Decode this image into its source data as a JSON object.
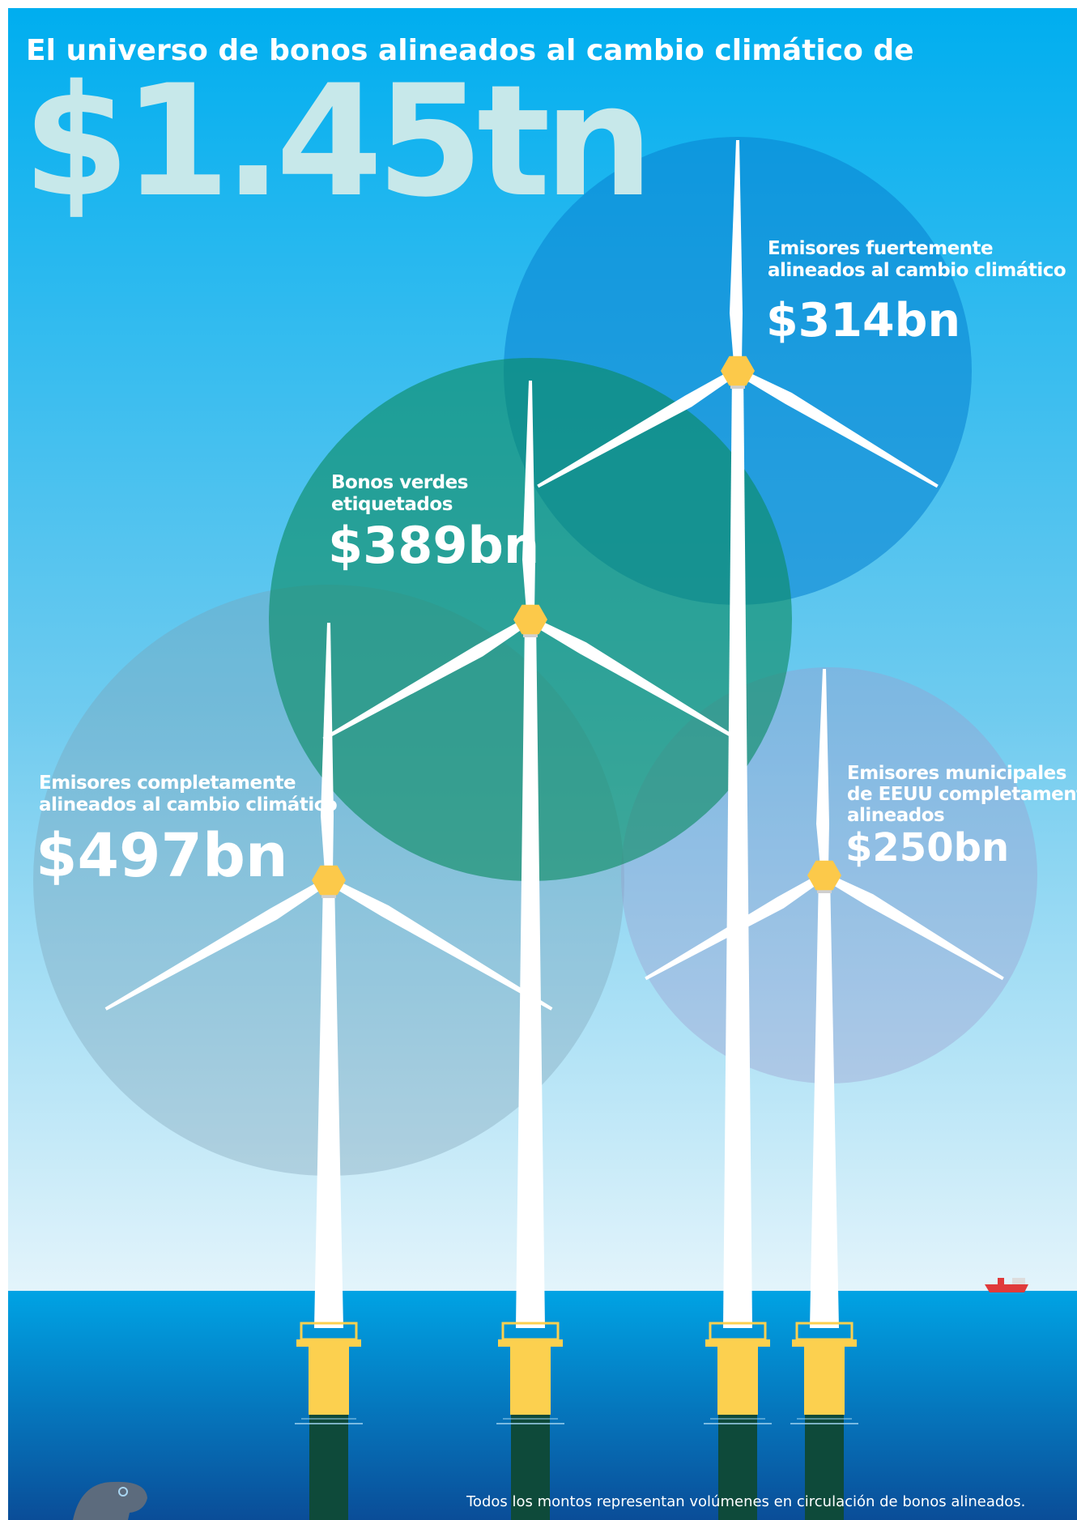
{
  "header": {
    "title": "El universo de bonos alineados al cambio climático de",
    "total": "$1.45tn"
  },
  "segments": [
    {
      "label_lines": [
        "Emisores fuertemente",
        "alineados al cambio climático"
      ],
      "amount": "$314bn"
    },
    {
      "label_lines": [
        "Bonos verdes",
        "etiquetados"
      ],
      "amount": "$389bn"
    },
    {
      "label_lines": [
        "Emisores completamente",
        "alineados al cambio climático"
      ],
      "amount": "$497bn"
    },
    {
      "label_lines": [
        "Emisores municipales",
        "de EEUU completamente",
        "alineados"
      ],
      "amount": "$250bn"
    }
  ],
  "footnote": "Todos los montos representan volúmenes en circulación de bonos alineados."
}
